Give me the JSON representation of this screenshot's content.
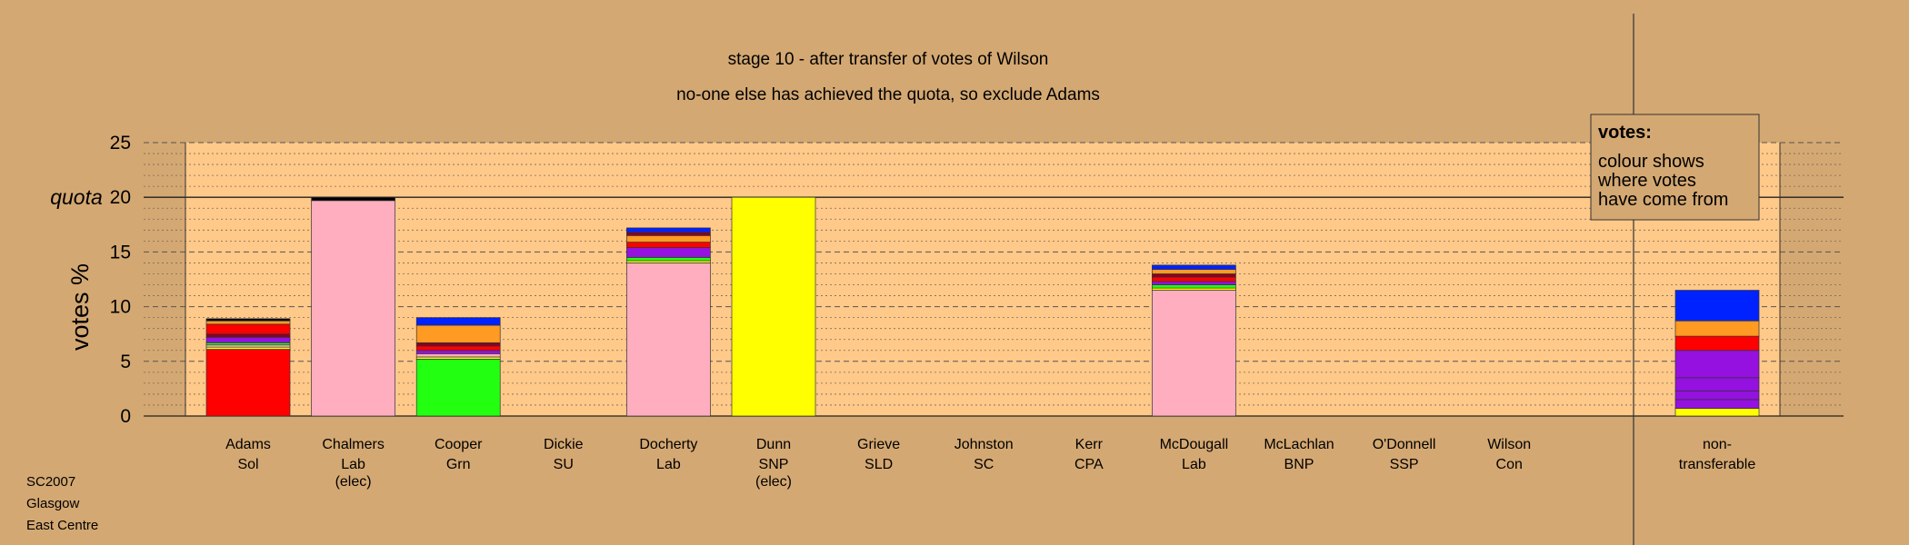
{
  "colors": {
    "background": "#d4a872",
    "plot_area": "#ffc98a",
    "Sol": "#ff0000",
    "Lab": "#ffaec0",
    "Grn": "#22ff11",
    "SNP": "#ffff00",
    "blue": "#0022ff",
    "orange": "#ff9a22",
    "purple": "#9411e0",
    "darkred": "#8b0022",
    "black": "#000000"
  },
  "chart_data": {
    "type": "bar",
    "title": "stage 10 - after transfer of votes of Wilson",
    "subtitle": "no-one else has achieved the quota, so exclude Adams",
    "ylabel": "votes %",
    "quota_label": "quota",
    "quota": 20,
    "ylim": [
      0,
      25
    ],
    "yticks": [
      0,
      5,
      10,
      15,
      20,
      25
    ],
    "grid": true,
    "legend": {
      "title": "votes:",
      "lines": [
        "colour shows",
        "where votes",
        "have come from"
      ],
      "placement": "top-right"
    },
    "categories": [
      {
        "name": "Adams",
        "party": "Sol",
        "note": ""
      },
      {
        "name": "Chalmers",
        "party": "Lab",
        "note": "(elec)"
      },
      {
        "name": "Cooper",
        "party": "Grn",
        "note": ""
      },
      {
        "name": "Dickie",
        "party": "SU",
        "note": ""
      },
      {
        "name": "Docherty",
        "party": "Lab",
        "note": ""
      },
      {
        "name": "Dunn",
        "party": "SNP",
        "note": "(elec)"
      },
      {
        "name": "Grieve",
        "party": "SLD",
        "note": ""
      },
      {
        "name": "Johnston",
        "party": "SC",
        "note": ""
      },
      {
        "name": "Kerr",
        "party": "CPA",
        "note": ""
      },
      {
        "name": "McDougall",
        "party": "Lab",
        "note": ""
      },
      {
        "name": "McLachlan",
        "party": "BNP",
        "note": ""
      },
      {
        "name": "O'Donnell",
        "party": "SSP",
        "note": ""
      },
      {
        "name": "Wilson",
        "party": "Con",
        "note": ""
      }
    ],
    "nontransferable_label": [
      "non-",
      "transferable"
    ],
    "bars": [
      [
        {
          "v": 6.1,
          "c": "#ff0000"
        },
        {
          "v": 0.2,
          "c": "#ffff00"
        },
        {
          "v": 0.2,
          "c": "#ffaec0"
        },
        {
          "v": 0.2,
          "c": "#22ff11"
        },
        {
          "v": 0.5,
          "c": "#9411e0"
        },
        {
          "v": 0.3,
          "c": "#8b0022"
        },
        {
          "v": 0.9,
          "c": "#ff0000"
        },
        {
          "v": 0.3,
          "c": "#ff9a22"
        },
        {
          "v": 0.2,
          "c": "#000000"
        }
      ],
      [
        {
          "v": 19.7,
          "c": "#ffaec0"
        },
        {
          "v": 0.3,
          "c": "#000000"
        }
      ],
      [
        {
          "v": 5.2,
          "c": "#22ff11"
        },
        {
          "v": 0.2,
          "c": "#ffff00"
        },
        {
          "v": 0.3,
          "c": "#ffaec0"
        },
        {
          "v": 0.3,
          "c": "#9411e0"
        },
        {
          "v": 0.4,
          "c": "#ff0000"
        },
        {
          "v": 0.3,
          "c": "#8b0022"
        },
        {
          "v": 1.6,
          "c": "#ff9a22"
        },
        {
          "v": 0.7,
          "c": "#0022ff"
        }
      ],
      [],
      [
        {
          "v": 14.0,
          "c": "#ffaec0"
        },
        {
          "v": 0.2,
          "c": "#ffff00"
        },
        {
          "v": 0.3,
          "c": "#22ff11"
        },
        {
          "v": 0.9,
          "c": "#9411e0"
        },
        {
          "v": 0.5,
          "c": "#ff0000"
        },
        {
          "v": 0.6,
          "c": "#ff9a22"
        },
        {
          "v": 0.3,
          "c": "#8b0022"
        },
        {
          "v": 0.4,
          "c": "#0022ff"
        }
      ],
      [
        {
          "v": 20.0,
          "c": "#ffff00"
        }
      ],
      [],
      [],
      [],
      [
        {
          "v": 11.5,
          "c": "#ffaec0"
        },
        {
          "v": 0.2,
          "c": "#ffff00"
        },
        {
          "v": 0.3,
          "c": "#22ff11"
        },
        {
          "v": 0.3,
          "c": "#9411e0"
        },
        {
          "v": 0.4,
          "c": "#ff0000"
        },
        {
          "v": 0.3,
          "c": "#8b0022"
        },
        {
          "v": 0.4,
          "c": "#ff9a22"
        },
        {
          "v": 0.4,
          "c": "#0022ff"
        }
      ],
      [],
      [],
      []
    ],
    "nontransferable": [
      {
        "v": 0.7,
        "c": "#ffff00"
      },
      {
        "v": 0.8,
        "c": "#9411e0"
      },
      {
        "v": 0.8,
        "c": "#9411e0"
      },
      {
        "v": 1.2,
        "c": "#9411e0"
      },
      {
        "v": 2.5,
        "c": "#9411e0"
      },
      {
        "v": 1.3,
        "c": "#ff0000"
      },
      {
        "v": 1.4,
        "c": "#ff9a22"
      },
      {
        "v": 2.8,
        "c": "#0022ff"
      }
    ]
  },
  "footer": {
    "line1": "SC2007",
    "line2": "Glasgow",
    "line3": "East Centre"
  }
}
